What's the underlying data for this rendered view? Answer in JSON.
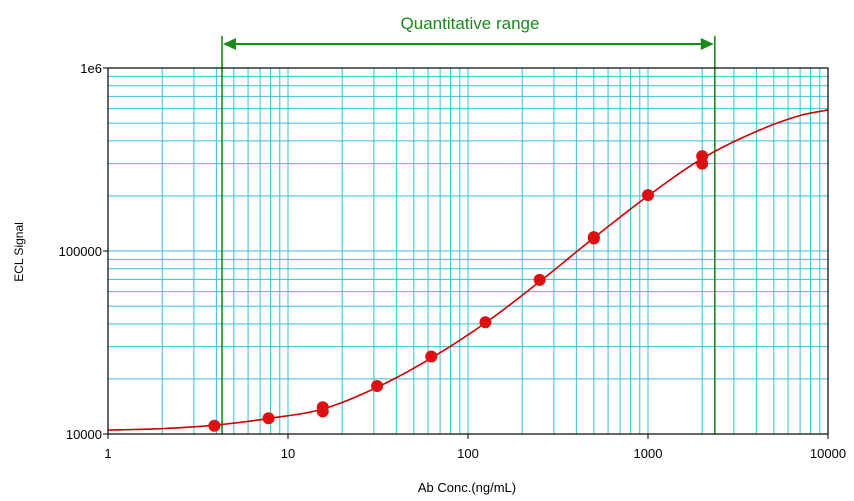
{
  "colors": {
    "grid": "#3cbfd8",
    "frame": "#000000",
    "curve": "#cc0000",
    "points": "#dd1111",
    "annotation": "#1a8a1a",
    "text": "#000000"
  },
  "chart_data": {
    "type": "scatter",
    "title": "",
    "xlabel": "Ab Conc.(ng/mL)",
    "ylabel": "ECL Signal",
    "x_scale": "log",
    "y_scale": "log",
    "xlim": [
      1,
      10000
    ],
    "ylim": [
      10000,
      1000000
    ],
    "grid": true,
    "x_ticks": [
      {
        "value": 1,
        "label": "1"
      },
      {
        "value": 10,
        "label": "10"
      },
      {
        "value": 100,
        "label": "100"
      },
      {
        "value": 1000,
        "label": "1000"
      },
      {
        "value": 10000,
        "label": "10000"
      }
    ],
    "y_ticks": [
      {
        "value": 10000,
        "label": "10000"
      },
      {
        "value": 100000,
        "label": "100000"
      },
      {
        "value": 1000000,
        "label": "1e6"
      }
    ],
    "annotation": {
      "label": "Quantitative range",
      "x_start": 4.3,
      "x_end": 2350
    },
    "series": [
      {
        "type": "scatter",
        "points": [
          {
            "x": 3.9,
            "y": 11100
          },
          {
            "x": 7.8,
            "y": 12200
          },
          {
            "x": 15.6,
            "y": 13300
          },
          {
            "x": 15.6,
            "y": 14000
          },
          {
            "x": 31.25,
            "y": 18300
          },
          {
            "x": 62.5,
            "y": 26500
          },
          {
            "x": 125,
            "y": 40800
          },
          {
            "x": 250,
            "y": 69500
          },
          {
            "x": 500,
            "y": 117000
          },
          {
            "x": 500,
            "y": 119000
          },
          {
            "x": 1000,
            "y": 202000
          },
          {
            "x": 2000,
            "y": 300000
          },
          {
            "x": 2000,
            "y": 330000
          }
        ]
      },
      {
        "type": "line",
        "points": [
          {
            "x": 1,
            "y": 10500
          },
          {
            "x": 2,
            "y": 10700
          },
          {
            "x": 4,
            "y": 11200
          },
          {
            "x": 8,
            "y": 12200
          },
          {
            "x": 15.6,
            "y": 13700
          },
          {
            "x": 31.25,
            "y": 18000
          },
          {
            "x": 62.5,
            "y": 26000
          },
          {
            "x": 125,
            "y": 40500
          },
          {
            "x": 250,
            "y": 68000
          },
          {
            "x": 500,
            "y": 118000
          },
          {
            "x": 1000,
            "y": 200000
          },
          {
            "x": 2000,
            "y": 320000
          },
          {
            "x": 4000,
            "y": 450000
          },
          {
            "x": 7000,
            "y": 550000
          },
          {
            "x": 10000,
            "y": 590000
          }
        ]
      }
    ]
  }
}
